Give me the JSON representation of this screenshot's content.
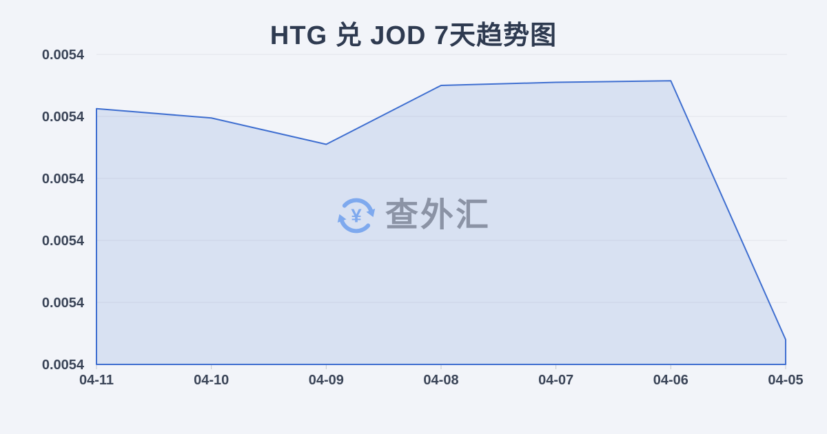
{
  "page": {
    "background_color": "#f2f4f9"
  },
  "chart_data": {
    "type": "area",
    "title": "HTG 兑 JOD 7天趋势图",
    "categories": [
      "04-11",
      "04-10",
      "04-09",
      "04-08",
      "04-07",
      "04-06",
      "04-05"
    ],
    "values": [
      0.0054175,
      0.0054169,
      0.0054152,
      0.005419,
      0.0054192,
      0.0054193,
      0.0054026
    ],
    "y_tick_labels": [
      "0.0054",
      "0.0054",
      "0.0054",
      "0.0054",
      "0.0054",
      "0.0054"
    ],
    "ylim": [
      0.005401,
      0.005421
    ],
    "xlabel": "",
    "ylabel": "",
    "grid": true,
    "legend": "none",
    "line_color": "#3e6ed0",
    "fill_color": "rgba(62,110,208,0.14)",
    "gridline_color": "#e3e5ea",
    "tick_color": "#c2c6ce",
    "axis_label_color": "#3a4457",
    "title_color": "#2e3a50"
  },
  "watermark": {
    "text": "查外汇",
    "icon": "currency-exchange-icon",
    "icon_color": "#7ea9ee",
    "text_color": "#8b93a5"
  }
}
